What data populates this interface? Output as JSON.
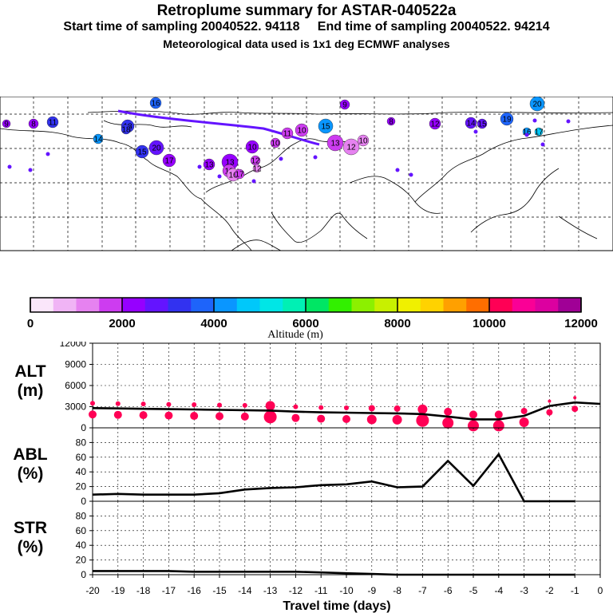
{
  "header": {
    "title": "Retroplume summary for ASTAR-040522a",
    "sampling": "Start time of sampling 20040522. 94118     End time of sampling 20040522. 94214",
    "met": "Meteorological data used is 1x1 deg ECMWF analyses"
  },
  "colorbar": {
    "ticks": [
      "0",
      "2000",
      "4000",
      "6000",
      "8000",
      "10000",
      "12000"
    ],
    "label": "Altitude (m)",
    "colors": [
      "#fae6fa",
      "#f0b4f5",
      "#e682f0",
      "#cd3cf0",
      "#9600ff",
      "#6414ff",
      "#3232f0",
      "#1e64fa",
      "#0a96ff",
      "#00c8fa",
      "#00e6e6",
      "#00f0b4",
      "#00e664",
      "#32f000",
      "#8cf000",
      "#c8f000",
      "#f0f000",
      "#ffd200",
      "#ffa000",
      "#ff6e00",
      "#ff0055",
      "#fa0096",
      "#dc00a0",
      "#a00096"
    ]
  },
  "map": {
    "labels": [
      "16",
      "18",
      "19",
      "20",
      "10",
      "13",
      "20",
      "17",
      "14",
      "15",
      "13",
      "12",
      "15",
      "10",
      "11",
      "10",
      "13",
      "12",
      "10",
      "12",
      "14",
      "15",
      "9",
      "8",
      "11",
      "10",
      "16",
      "17",
      "9",
      "8",
      "12",
      "18",
      "16",
      "17"
    ]
  },
  "chart_data": [
    {
      "type": "line",
      "title": "",
      "ylabel": "ALT\n(m)",
      "xlabel": "Travel time (days)",
      "ylim": [
        0,
        12000
      ],
      "yticks": [
        "0",
        "3000",
        "6000",
        "9000",
        "12000"
      ],
      "x": [
        -20,
        -19,
        -18,
        -17,
        -16,
        -15,
        -14,
        -13,
        -12,
        -11,
        -10,
        -9,
        -8,
        -7,
        -6,
        -5,
        -4,
        -3,
        -2,
        -1,
        0
      ],
      "series": [
        {
          "name": "mean altitude",
          "values": [
            2800,
            2750,
            2700,
            2650,
            2600,
            2550,
            2500,
            2450,
            2300,
            2200,
            2150,
            2100,
            2050,
            1950,
            1600,
            1200,
            1200,
            1700,
            3100,
            3600,
            3400
          ]
        }
      ]
    },
    {
      "type": "line",
      "ylabel": "ABL\n(%)",
      "ylim": [
        0,
        100
      ],
      "yticks": [
        "0",
        "20",
        "40",
        "60",
        "80"
      ],
      "x": [
        -20,
        -19,
        -18,
        -17,
        -16,
        -15,
        -14,
        -13,
        -12,
        -11,
        -10,
        -9,
        -8,
        -7,
        -6,
        -5,
        -4,
        -3,
        -2,
        -1
      ],
      "series": [
        {
          "name": "ABL fraction",
          "values": [
            9,
            10,
            9,
            9,
            9,
            11,
            16,
            18,
            19,
            22,
            23,
            27,
            19,
            20,
            55,
            21,
            64,
            0,
            0,
            0
          ]
        }
      ]
    },
    {
      "type": "line",
      "ylabel": "STR\n(%)",
      "ylim": [
        0,
        100
      ],
      "yticks": [
        "0",
        "20",
        "40",
        "60",
        "80"
      ],
      "x": [
        -20,
        -19,
        -18,
        -17,
        -16,
        -15,
        -14,
        -13,
        -12,
        -11,
        -10,
        -9,
        -8,
        -7,
        -6,
        -5,
        -4,
        -3,
        -2,
        -1
      ],
      "series": [
        {
          "name": "STR fraction",
          "values": [
            5,
            5,
            5,
            5,
            4,
            4,
            4,
            4,
            4,
            3,
            2,
            1,
            0,
            0,
            0,
            0,
            0,
            0,
            0,
            0
          ]
        }
      ]
    }
  ],
  "xaxis": {
    "ticks": [
      "-20",
      "-19",
      "-18",
      "-17",
      "-16",
      "-15",
      "-14",
      "-13",
      "-12",
      "-11",
      "-10",
      "-9",
      "-8",
      "-7",
      "-6",
      "-5",
      "-4",
      "-3",
      "-2",
      "-1",
      "0"
    ],
    "label": "Travel time (days)"
  }
}
